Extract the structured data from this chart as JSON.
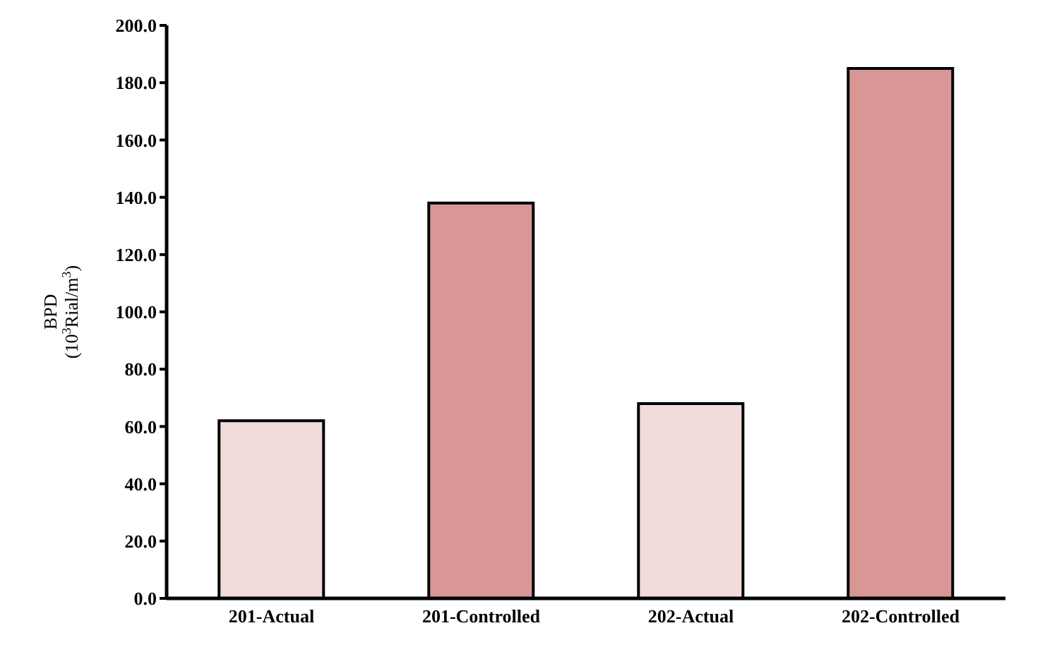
{
  "chart_data": {
    "type": "bar",
    "ylabel": "BPD\n(10$^{3}$Rial/m$^{3}$)",
    "categories": [
      "201-Actual",
      "201-Controlled",
      "202-Actual",
      "202-Controlled"
    ],
    "values": [
      62,
      138,
      68,
      185
    ],
    "colors": [
      "#f2dcdb",
      "#d99694",
      "#f2dcdb",
      "#d99694"
    ],
    "ylim": [
      0,
      200
    ],
    "yticks": [
      {
        "value": 0,
        "label": "0.0"
      },
      {
        "value": 20,
        "label": "20.0"
      },
      {
        "value": 40,
        "label": "40.0"
      },
      {
        "value": 60,
        "label": "60.0"
      },
      {
        "value": 80,
        "label": "80.0"
      },
      {
        "value": 100,
        "label": "100.0"
      },
      {
        "value": 120,
        "label": "120.0"
      },
      {
        "value": 140,
        "label": "140.0"
      },
      {
        "value": 160,
        "label": "160.0"
      },
      {
        "value": 180,
        "label": "180.0"
      },
      {
        "value": 200,
        "label": "200.0"
      }
    ],
    "grid": false,
    "legend": false
  }
}
